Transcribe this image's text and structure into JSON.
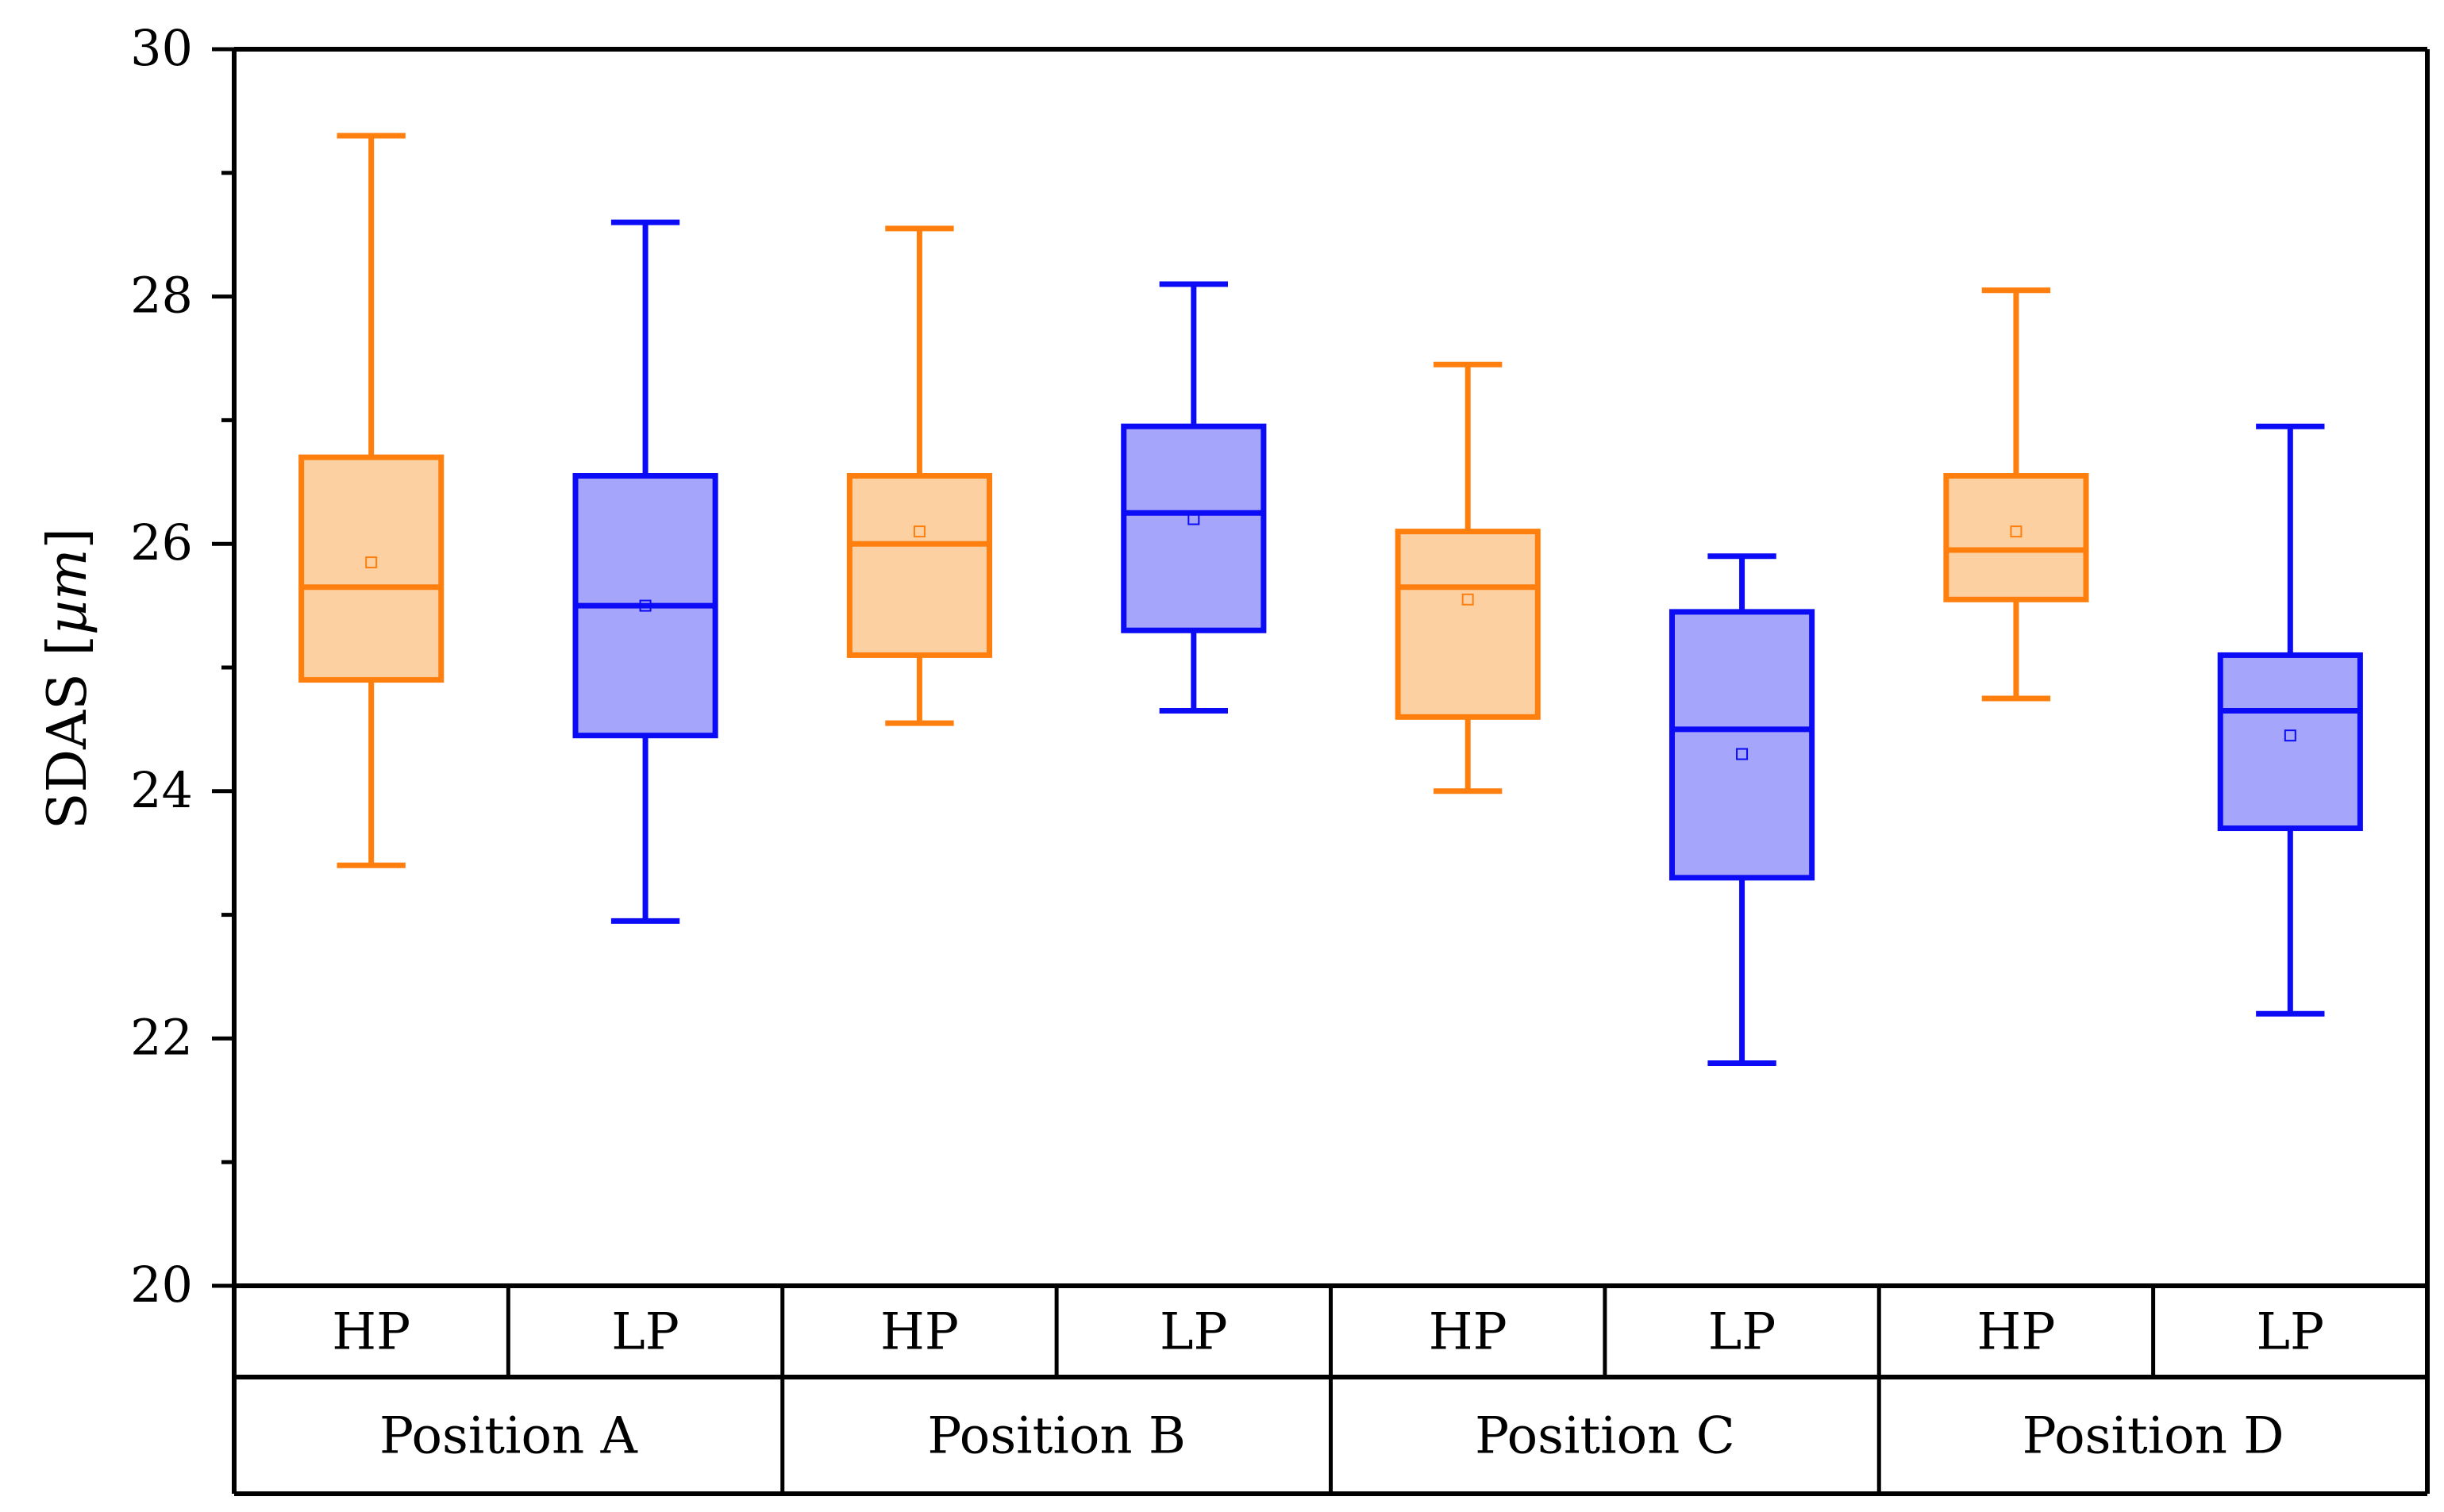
{
  "chart_data": {
    "type": "box",
    "title": "",
    "xlabel": "",
    "ylabel": "SDAS",
    "ylabel_unit": "µm",
    "ylim": [
      20,
      30
    ],
    "yticks": [
      20,
      22,
      24,
      26,
      28,
      30
    ],
    "groups": [
      "Position A",
      "Position B",
      "Position C",
      "Position D"
    ],
    "subcategories": [
      "HP",
      "LP"
    ],
    "colors": {
      "HP": {
        "stroke": "#ff7f0e",
        "fill": "#fdd0a2"
      },
      "LP": {
        "stroke": "#0b0bf5",
        "fill": "#a5a5fb"
      }
    },
    "boxes": [
      {
        "group": "Position A",
        "category": "HP",
        "whisker_low": 23.4,
        "q1": 24.9,
        "median": 25.65,
        "q3": 26.7,
        "whisker_high": 29.3,
        "mean": 25.85
      },
      {
        "group": "Position A",
        "category": "LP",
        "whisker_low": 22.95,
        "q1": 24.45,
        "median": 25.5,
        "q3": 26.55,
        "whisker_high": 28.6,
        "mean": 25.5
      },
      {
        "group": "Position B",
        "category": "HP",
        "whisker_low": 24.55,
        "q1": 25.1,
        "median": 26.0,
        "q3": 26.55,
        "whisker_high": 28.55,
        "mean": 26.1
      },
      {
        "group": "Position B",
        "category": "LP",
        "whisker_low": 24.65,
        "q1": 25.3,
        "median": 26.25,
        "q3": 26.95,
        "whisker_high": 28.1,
        "mean": 26.2
      },
      {
        "group": "Position C",
        "category": "HP",
        "whisker_low": 24.0,
        "q1": 24.6,
        "median": 25.65,
        "q3": 26.1,
        "whisker_high": 27.45,
        "mean": 25.55
      },
      {
        "group": "Position C",
        "category": "LP",
        "whisker_low": 21.8,
        "q1": 23.3,
        "median": 24.5,
        "q3": 25.45,
        "whisker_high": 25.9,
        "mean": 24.3
      },
      {
        "group": "Position D",
        "category": "HP",
        "whisker_low": 24.75,
        "q1": 25.55,
        "median": 25.95,
        "q3": 26.55,
        "whisker_high": 28.05,
        "mean": 26.1
      },
      {
        "group": "Position D",
        "category": "LP",
        "whisker_low": 22.2,
        "q1": 23.7,
        "median": 24.65,
        "q3": 25.1,
        "whisker_high": 26.95,
        "mean": 24.45
      }
    ]
  }
}
